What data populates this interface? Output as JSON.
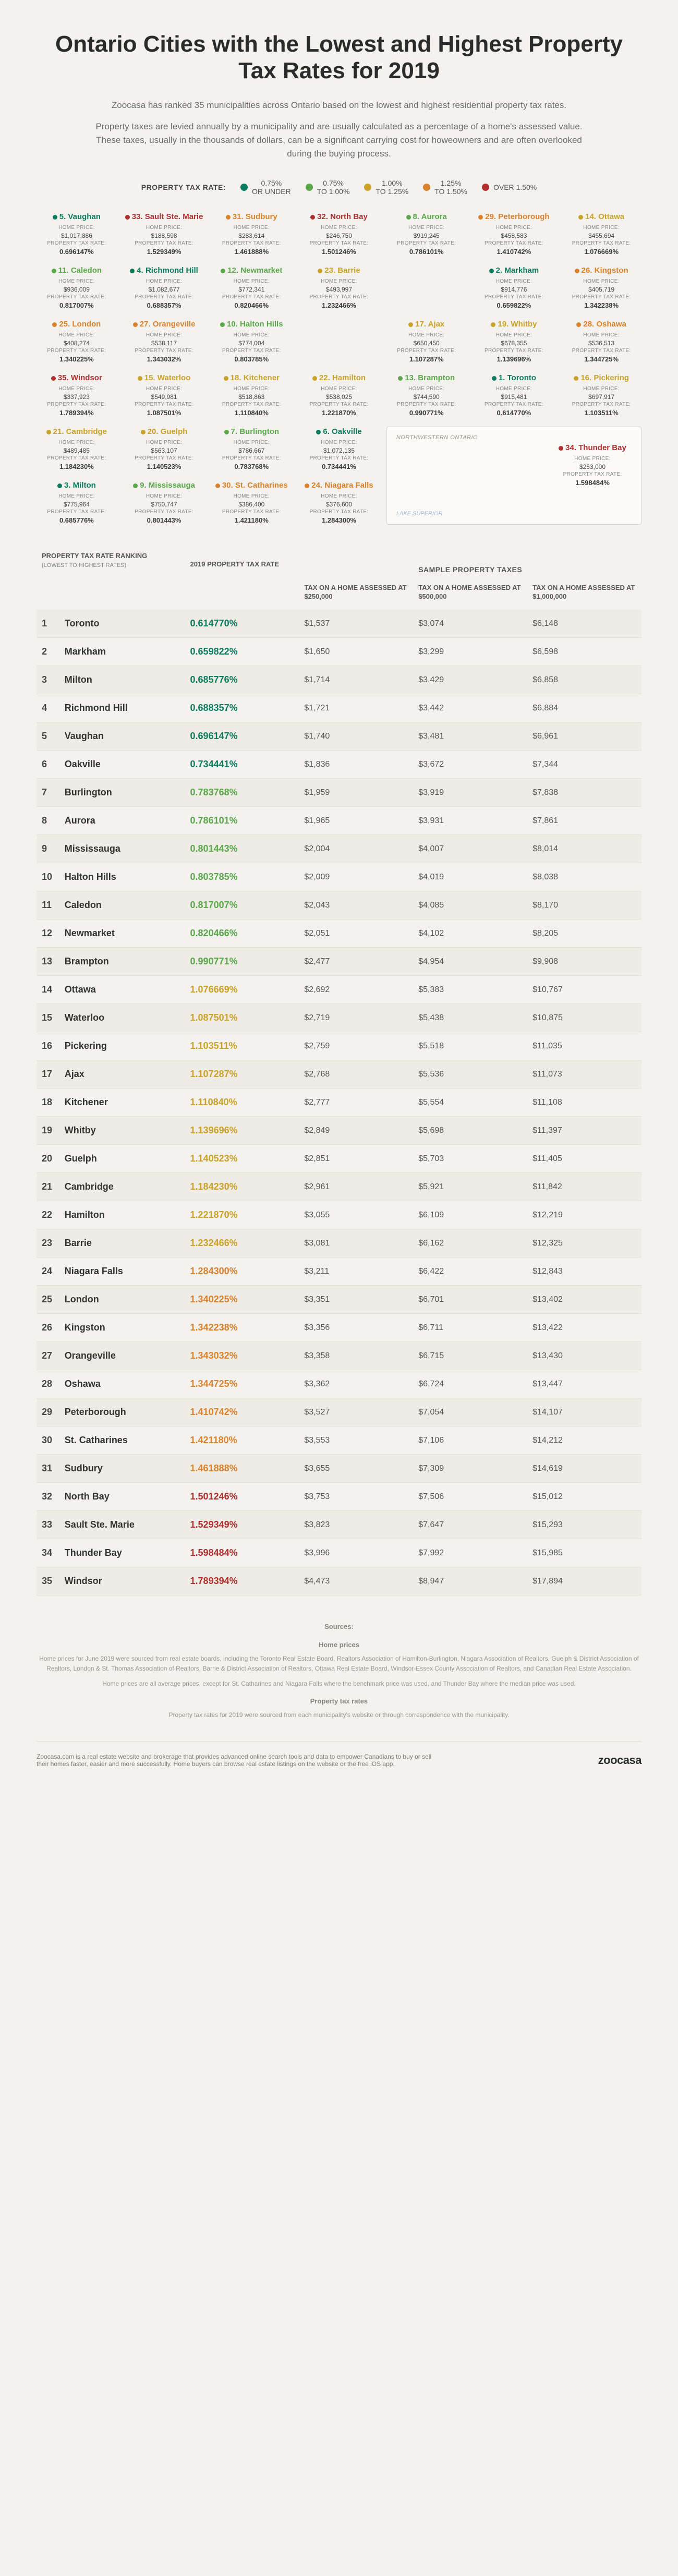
{
  "colors": {
    "tier1": "#0a7b5e",
    "tier2": "#5aa84a",
    "tier3": "#c9a227",
    "tier4": "#d9822b",
    "tier5": "#b02e2e"
  },
  "title": "Ontario Cities with the Lowest and Highest Property Tax Rates for 2019",
  "intro1": "Zoocasa has ranked 35 municipalities across Ontario based on the lowest and highest residential property tax rates.",
  "intro2": "Property taxes are levied annually by a municipality and are usually calculated as a percentage of a home's assessed value. These taxes, usually in the thousands of dollars, can be a significant carrying cost for howeowners and are often overlooked during the buying process.",
  "legend": {
    "label": "PROPERTY TAX RATE:",
    "items": [
      {
        "color_key": "tier1",
        "text": "0.75% OR UNDER"
      },
      {
        "color_key": "tier2",
        "text": "0.75% TO 1.00%"
      },
      {
        "color_key": "tier3",
        "text": "1.00% TO 1.25%"
      },
      {
        "color_key": "tier4",
        "text": "1.25% TO 1.50%"
      },
      {
        "color_key": "tier5",
        "text": "OVER 1.50%"
      }
    ]
  },
  "labels": {
    "home_price": "HOME PRICE:",
    "rate": "PROPERTY TAX RATE:"
  },
  "inset": {
    "region": "NORTHWESTERN ONTARIO",
    "lake": "LAKE SUPERIOR"
  },
  "map_rows": [
    [
      {
        "rank": 5,
        "name": "Vaughan",
        "price": "$1,017,886",
        "rate": "0.696147%",
        "tier": 1
      },
      {
        "rank": 33,
        "name": "Sault Ste. Marie",
        "price": "$188,598",
        "rate": "1.529349%",
        "tier": 5
      },
      {
        "rank": 31,
        "name": "Sudbury",
        "price": "$283,614",
        "rate": "1.461888%",
        "tier": 4
      },
      {
        "rank": 32,
        "name": "North Bay",
        "price": "$246,750",
        "rate": "1.501246%",
        "tier": 5
      },
      {
        "rank": 8,
        "name": "Aurora",
        "price": "$919,245",
        "rate": "0.786101%",
        "tier": 2
      },
      {
        "rank": 29,
        "name": "Peterborough",
        "price": "$458,583",
        "rate": "1.410742%",
        "tier": 4
      },
      {
        "rank": 14,
        "name": "Ottawa",
        "price": "$455,694",
        "rate": "1.076669%",
        "tier": 3
      }
    ],
    [
      {
        "rank": 11,
        "name": "Caledon",
        "price": "$936,009",
        "rate": "0.817007%",
        "tier": 2
      },
      {
        "rank": 4,
        "name": "Richmond Hill",
        "price": "$1,082,677",
        "rate": "0.688357%",
        "tier": 1
      },
      {
        "rank": 12,
        "name": "Newmarket",
        "price": "$772,341",
        "rate": "0.820466%",
        "tier": 2
      },
      {
        "rank": 23,
        "name": "Barrie",
        "price": "$493,997",
        "rate": "1.232466%",
        "tier": 3
      },
      null,
      {
        "rank": 2,
        "name": "Markham",
        "price": "$914,776",
        "rate": "0.659822%",
        "tier": 1
      },
      {
        "rank": 26,
        "name": "Kingston",
        "price": "$405,719",
        "rate": "1.342238%",
        "tier": 4
      }
    ],
    [
      {
        "rank": 25,
        "name": "London",
        "price": "$408,274",
        "rate": "1.340225%",
        "tier": 4
      },
      {
        "rank": 27,
        "name": "Orangeville",
        "price": "$538,117",
        "rate": "1.343032%",
        "tier": 4
      },
      {
        "rank": 10,
        "name": "Halton Hills",
        "price": "$774,004",
        "rate": "0.803785%",
        "tier": 2
      },
      null,
      {
        "rank": 17,
        "name": "Ajax",
        "price": "$650,450",
        "rate": "1.107287%",
        "tier": 3
      },
      {
        "rank": 19,
        "name": "Whitby",
        "price": "$678,355",
        "rate": "1.139696%",
        "tier": 3
      },
      {
        "rank": 28,
        "name": "Oshawa",
        "price": "$536,513",
        "rate": "1.344725%",
        "tier": 4
      }
    ],
    [
      {
        "rank": 35,
        "name": "Windsor",
        "price": "$337,923",
        "rate": "1.789394%",
        "tier": 5
      },
      {
        "rank": 15,
        "name": "Waterloo",
        "price": "$549,981",
        "rate": "1.087501%",
        "tier": 3
      },
      {
        "rank": 18,
        "name": "Kitchener",
        "price": "$518,863",
        "rate": "1.110840%",
        "tier": 3
      },
      {
        "rank": 22,
        "name": "Hamilton",
        "price": "$538,025",
        "rate": "1.221870%",
        "tier": 3
      },
      {
        "rank": 13,
        "name": "Brampton",
        "price": "$744,590",
        "rate": "0.990771%",
        "tier": 2
      },
      {
        "rank": 1,
        "name": "Toronto",
        "price": "$915,481",
        "rate": "0.614770%",
        "tier": 1
      },
      {
        "rank": 16,
        "name": "Pickering",
        "price": "$697,917",
        "rate": "1.103511%",
        "tier": 3
      }
    ],
    [
      {
        "rank": 21,
        "name": "Cambridge",
        "price": "$489,485",
        "rate": "1.184230%",
        "tier": 3
      },
      {
        "rank": 20,
        "name": "Guelph",
        "price": "$563,107",
        "rate": "1.140523%",
        "tier": 3
      },
      {
        "rank": 7,
        "name": "Burlington",
        "price": "$786,667",
        "rate": "0.783768%",
        "tier": 2
      },
      {
        "rank": 6,
        "name": "Oakville",
        "price": "$1,072,135",
        "rate": "0.734441%",
        "tier": 1
      },
      "inset"
    ],
    [
      {
        "rank": 3,
        "name": "Milton",
        "price": "$775,964",
        "rate": "0.685776%",
        "tier": 1
      },
      {
        "rank": 9,
        "name": "Mississauga",
        "price": "$750,747",
        "rate": "0.801443%",
        "tier": 2
      },
      {
        "rank": 30,
        "name": "St. Catharines",
        "price": "$386,400",
        "rate": "1.421180%",
        "tier": 4
      },
      {
        "rank": 24,
        "name": "Niagara Falls",
        "price": "$376,600",
        "rate": "1.284300%",
        "tier": 4
      }
    ]
  ],
  "inset_city": {
    "rank": 34,
    "name": "Thunder Bay",
    "price": "$253,000",
    "rate": "1.598484%",
    "tier": 5
  },
  "table": {
    "head_rank": "PROPERTY TAX RATE RANKING",
    "head_rank_sub": "(LOWEST TO HIGHEST RATES)",
    "head_rate": "2019 PROPERTY TAX RATE",
    "head_sample": "SAMPLE PROPERTY TAXES",
    "head_t1": "TAX ON A HOME ASSESSED AT",
    "amt1": "$250,000",
    "amt2": "$500,000",
    "amt3": "$1,000,000",
    "rows": [
      {
        "rank": 1,
        "city": "Toronto",
        "rate": "0.614770%",
        "tier": 1,
        "t1": "$1,537",
        "t2": "$3,074",
        "t3": "$6,148"
      },
      {
        "rank": 2,
        "city": "Markham",
        "rate": "0.659822%",
        "tier": 1,
        "t1": "$1,650",
        "t2": "$3,299",
        "t3": "$6,598"
      },
      {
        "rank": 3,
        "city": "Milton",
        "rate": "0.685776%",
        "tier": 1,
        "t1": "$1,714",
        "t2": "$3,429",
        "t3": "$6,858"
      },
      {
        "rank": 4,
        "city": "Richmond Hill",
        "rate": "0.688357%",
        "tier": 1,
        "t1": "$1,721",
        "t2": "$3,442",
        "t3": "$6,884"
      },
      {
        "rank": 5,
        "city": "Vaughan",
        "rate": "0.696147%",
        "tier": 1,
        "t1": "$1,740",
        "t2": "$3,481",
        "t3": "$6,961"
      },
      {
        "rank": 6,
        "city": "Oakville",
        "rate": "0.734441%",
        "tier": 1,
        "t1": "$1,836",
        "t2": "$3,672",
        "t3": "$7,344"
      },
      {
        "rank": 7,
        "city": "Burlington",
        "rate": "0.783768%",
        "tier": 2,
        "t1": "$1,959",
        "t2": "$3,919",
        "t3": "$7,838"
      },
      {
        "rank": 8,
        "city": "Aurora",
        "rate": "0.786101%",
        "tier": 2,
        "t1": "$1,965",
        "t2": "$3,931",
        "t3": "$7,861"
      },
      {
        "rank": 9,
        "city": "Mississauga",
        "rate": "0.801443%",
        "tier": 2,
        "t1": "$2,004",
        "t2": "$4,007",
        "t3": "$8,014"
      },
      {
        "rank": 10,
        "city": "Halton Hills",
        "rate": "0.803785%",
        "tier": 2,
        "t1": "$2,009",
        "t2": "$4,019",
        "t3": "$8,038"
      },
      {
        "rank": 11,
        "city": "Caledon",
        "rate": "0.817007%",
        "tier": 2,
        "t1": "$2,043",
        "t2": "$4,085",
        "t3": "$8,170"
      },
      {
        "rank": 12,
        "city": "Newmarket",
        "rate": "0.820466%",
        "tier": 2,
        "t1": "$2,051",
        "t2": "$4,102",
        "t3": "$8,205"
      },
      {
        "rank": 13,
        "city": "Brampton",
        "rate": "0.990771%",
        "tier": 2,
        "t1": "$2,477",
        "t2": "$4,954",
        "t3": "$9,908"
      },
      {
        "rank": 14,
        "city": "Ottawa",
        "rate": "1.076669%",
        "tier": 3,
        "t1": "$2,692",
        "t2": "$5,383",
        "t3": "$10,767"
      },
      {
        "rank": 15,
        "city": "Waterloo",
        "rate": "1.087501%",
        "tier": 3,
        "t1": "$2,719",
        "t2": "$5,438",
        "t3": "$10,875"
      },
      {
        "rank": 16,
        "city": "Pickering",
        "rate": "1.103511%",
        "tier": 3,
        "t1": "$2,759",
        "t2": "$5,518",
        "t3": "$11,035"
      },
      {
        "rank": 17,
        "city": "Ajax",
        "rate": "1.107287%",
        "tier": 3,
        "t1": "$2,768",
        "t2": "$5,536",
        "t3": "$11,073"
      },
      {
        "rank": 18,
        "city": "Kitchener",
        "rate": "1.110840%",
        "tier": 3,
        "t1": "$2,777",
        "t2": "$5,554",
        "t3": "$11,108"
      },
      {
        "rank": 19,
        "city": "Whitby",
        "rate": "1.139696%",
        "tier": 3,
        "t1": "$2,849",
        "t2": "$5,698",
        "t3": "$11,397"
      },
      {
        "rank": 20,
        "city": "Guelph",
        "rate": "1.140523%",
        "tier": 3,
        "t1": "$2,851",
        "t2": "$5,703",
        "t3": "$11,405"
      },
      {
        "rank": 21,
        "city": "Cambridge",
        "rate": "1.184230%",
        "tier": 3,
        "t1": "$2,961",
        "t2": "$5,921",
        "t3": "$11,842"
      },
      {
        "rank": 22,
        "city": "Hamilton",
        "rate": "1.221870%",
        "tier": 3,
        "t1": "$3,055",
        "t2": "$6,109",
        "t3": "$12,219"
      },
      {
        "rank": 23,
        "city": "Barrie",
        "rate": "1.232466%",
        "tier": 3,
        "t1": "$3,081",
        "t2": "$6,162",
        "t3": "$12,325"
      },
      {
        "rank": 24,
        "city": "Niagara Falls",
        "rate": "1.284300%",
        "tier": 4,
        "t1": "$3,211",
        "t2": "$6,422",
        "t3": "$12,843"
      },
      {
        "rank": 25,
        "city": "London",
        "rate": "1.340225%",
        "tier": 4,
        "t1": "$3,351",
        "t2": "$6,701",
        "t3": "$13,402"
      },
      {
        "rank": 26,
        "city": "Kingston",
        "rate": "1.342238%",
        "tier": 4,
        "t1": "$3,356",
        "t2": "$6,711",
        "t3": "$13,422"
      },
      {
        "rank": 27,
        "city": "Orangeville",
        "rate": "1.343032%",
        "tier": 4,
        "t1": "$3,358",
        "t2": "$6,715",
        "t3": "$13,430"
      },
      {
        "rank": 28,
        "city": "Oshawa",
        "rate": "1.344725%",
        "tier": 4,
        "t1": "$3,362",
        "t2": "$6,724",
        "t3": "$13,447"
      },
      {
        "rank": 29,
        "city": "Peterborough",
        "rate": "1.410742%",
        "tier": 4,
        "t1": "$3,527",
        "t2": "$7,054",
        "t3": "$14,107"
      },
      {
        "rank": 30,
        "city": "St. Catharines",
        "rate": "1.421180%",
        "tier": 4,
        "t1": "$3,553",
        "t2": "$7,106",
        "t3": "$14,212"
      },
      {
        "rank": 31,
        "city": "Sudbury",
        "rate": "1.461888%",
        "tier": 4,
        "t1": "$3,655",
        "t2": "$7,309",
        "t3": "$14,619"
      },
      {
        "rank": 32,
        "city": "North Bay",
        "rate": "1.501246%",
        "tier": 5,
        "t1": "$3,753",
        "t2": "$7,506",
        "t3": "$15,012"
      },
      {
        "rank": 33,
        "city": "Sault Ste. Marie",
        "rate": "1.529349%",
        "tier": 5,
        "t1": "$3,823",
        "t2": "$7,647",
        "t3": "$15,293"
      },
      {
        "rank": 34,
        "city": "Thunder Bay",
        "rate": "1.598484%",
        "tier": 5,
        "t1": "$3,996",
        "t2": "$7,992",
        "t3": "$15,985"
      },
      {
        "rank": 35,
        "city": "Windsor",
        "rate": "1.789394%",
        "tier": 5,
        "t1": "$4,473",
        "t2": "$8,947",
        "t3": "$17,894"
      }
    ]
  },
  "sources": {
    "title": "Sources:",
    "home_prices_h": "Home prices",
    "home_prices_1": "Home prices for June 2019 were sourced from real estate boards, including the Toronto Real Estate Board, Realtors Association of Hamilton-Burlington, Niagara Association of Realtors, Guelph & District Association of Realtors, London & St. Thomas Association of Realtors, Barrie & District Association of Realtors, Ottawa Real Estate Board, Windsor-Essex County Association of Realtors, and Canadian Real Estate Association.",
    "home_prices_2": "Home prices are all average prices, except for St. Catharines and Niagara Falls where the benchmark price was used, and Thunder Bay where the median price was used.",
    "rates_h": "Property tax rates",
    "rates_1": "Property tax rates for 2019 were sourced from each municipality's website or through correspondence with the municipality."
  },
  "footer": {
    "text": "Zoocasa.com is a real estate website and brokerage that provides advanced online search tools and data to empower Canadians to buy or sell their homes faster, easier and more successfully. Home buyers can browse real estate listings on the website or the free iOS app.",
    "logo": "zoocasa"
  }
}
